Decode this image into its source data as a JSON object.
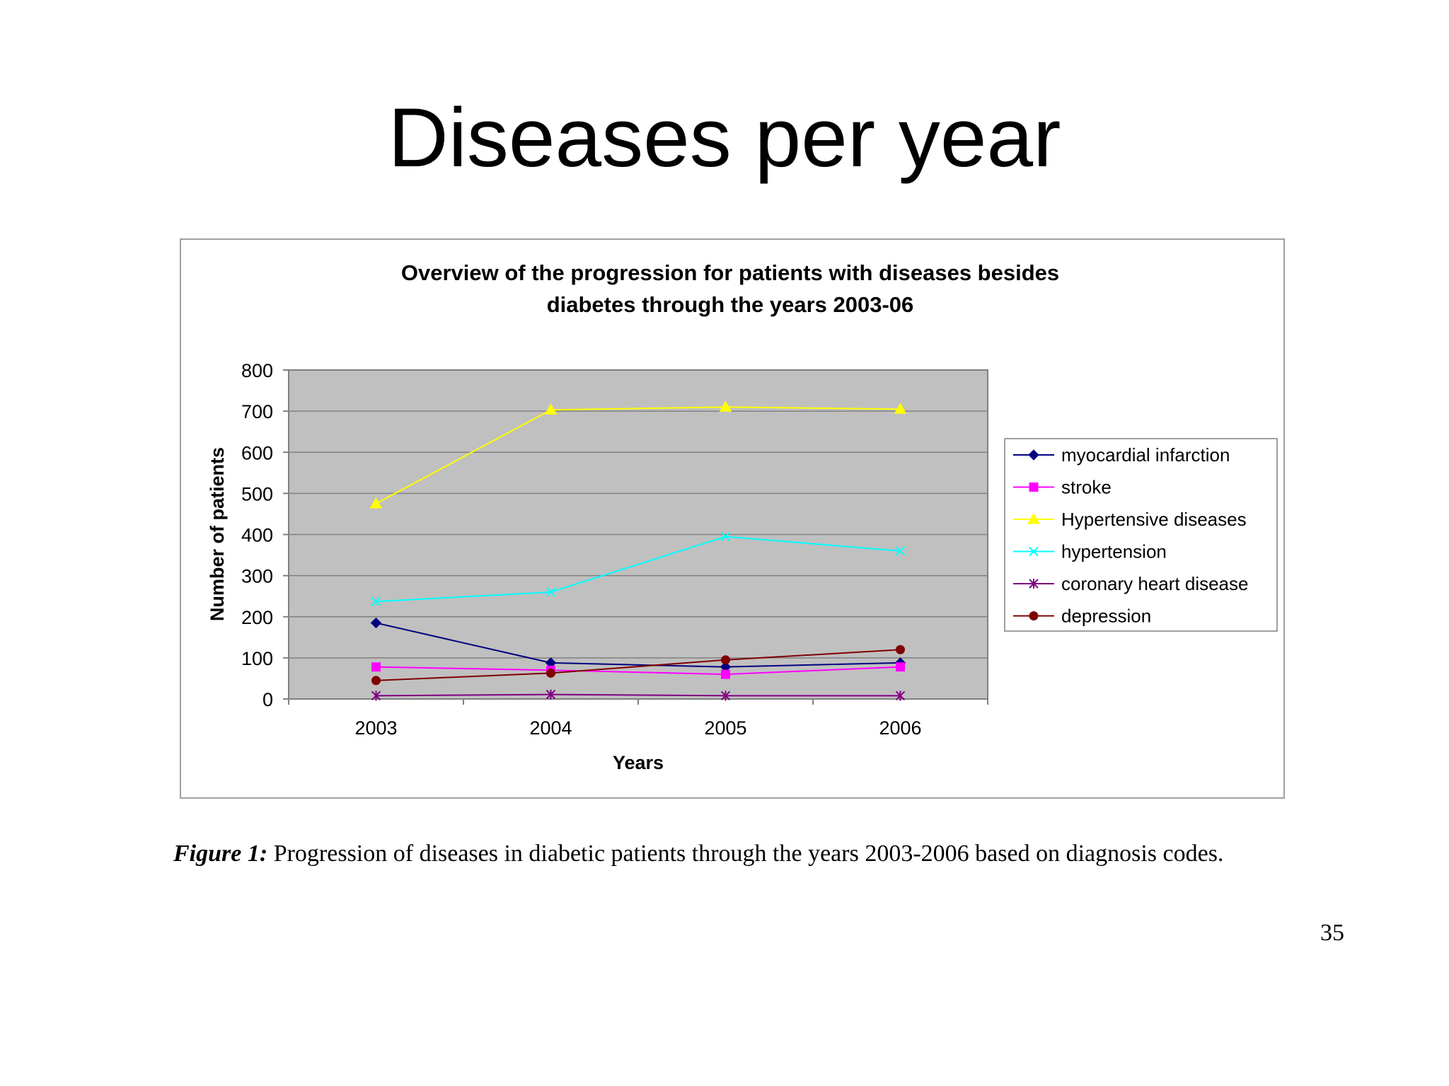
{
  "slide": {
    "title": "Diseases per year",
    "caption_label": "Figure 1:",
    "caption_text": " Progression of diseases in diabetic patients through the years 2003-2006 based on diagnosis codes.",
    "page_number": "35"
  },
  "chart_data": {
    "type": "line",
    "title_line1": "Overview of the progression for patients with diseases besides",
    "title_line2": "diabetes through the years 2003-06",
    "xlabel": "Years",
    "ylabel": "Number of patients",
    "categories": [
      "2003",
      "2004",
      "2005",
      "2006"
    ],
    "ylim": [
      0,
      800
    ],
    "yticks": [
      0,
      100,
      200,
      300,
      400,
      500,
      600,
      700,
      800
    ],
    "grid": true,
    "plot_background": "#c0c0c0",
    "legend_position": "right",
    "series": [
      {
        "name": "myocardial infarction",
        "values": [
          185,
          88,
          78,
          88
        ],
        "color": "#000080",
        "marker": "diamond"
      },
      {
        "name": "stroke",
        "values": [
          78,
          70,
          60,
          78
        ],
        "color": "#ff00ff",
        "marker": "square"
      },
      {
        "name": "Hypertensive diseases",
        "values": [
          475,
          703,
          710,
          705
        ],
        "color": "#ffff00",
        "marker": "triangle"
      },
      {
        "name": "hypertension",
        "values": [
          237,
          260,
          395,
          360
        ],
        "color": "#00ffff",
        "marker": "x"
      },
      {
        "name": "coronary heart disease",
        "values": [
          8,
          11,
          8,
          8
        ],
        "color": "#800080",
        "marker": "star"
      },
      {
        "name": "depression",
        "values": [
          45,
          63,
          95,
          120
        ],
        "color": "#800000",
        "marker": "circle"
      }
    ]
  }
}
